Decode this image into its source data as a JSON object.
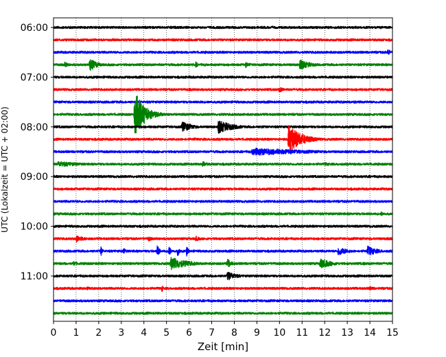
{
  "chart_data": {
    "type": "line",
    "title": "",
    "xlabel": "Zeit  [min]",
    "ylabel": "UTC (Lokalzeit = UTC + 02:00)",
    "xlim": [
      0,
      15
    ],
    "x_ticks": [
      0,
      1,
      2,
      3,
      4,
      5,
      6,
      7,
      8,
      9,
      10,
      11,
      12,
      13,
      14,
      15
    ],
    "y_tick_labels": [
      "06:00",
      "07:00",
      "08:00",
      "09:00",
      "10:00",
      "11:00"
    ],
    "grid": "vertical-dotted",
    "legend": "none",
    "trace_interval_minutes": 15,
    "trace_colors": [
      "#000000",
      "#ff0000",
      "#0000ff",
      "#008000"
    ],
    "traces": [
      {
        "start": "06:00",
        "color": "#000000",
        "events": [
          {
            "t": 5.2,
            "amp": 0.3,
            "dur": 0.3
          }
        ]
      },
      {
        "start": "06:15",
        "color": "#ff0000",
        "events": [
          {
            "t": 13.5,
            "amp": 0.2,
            "dur": 0.8
          }
        ]
      },
      {
        "start": "06:30",
        "color": "#0000ff",
        "events": [
          {
            "t": 14.8,
            "amp": 0.6,
            "dur": 0.3
          }
        ]
      },
      {
        "start": "06:45",
        "color": "#008000",
        "events": [
          {
            "t": 0.5,
            "amp": 0.5,
            "dur": 0.5
          },
          {
            "t": 1.6,
            "amp": 1.1,
            "dur": 0.8
          },
          {
            "t": 6.3,
            "amp": 0.5,
            "dur": 0.3
          },
          {
            "t": 8.5,
            "amp": 0.5,
            "dur": 0.6
          },
          {
            "t": 10.9,
            "amp": 0.9,
            "dur": 1.1
          }
        ]
      },
      {
        "start": "07:00",
        "color": "#000000",
        "events": [
          {
            "t": 6.0,
            "amp": 0.3,
            "dur": 0.4
          }
        ]
      },
      {
        "start": "07:15",
        "color": "#ff0000",
        "events": [
          {
            "t": 6.0,
            "amp": 0.3,
            "dur": 0.4
          },
          {
            "t": 10.0,
            "amp": 0.5,
            "dur": 0.6
          }
        ]
      },
      {
        "start": "07:30",
        "color": "#0000ff",
        "events": [
          {
            "t": 6.5,
            "amp": 0.3,
            "dur": 0.4
          },
          {
            "t": 13.3,
            "amp": 0.3,
            "dur": 0.5
          }
        ]
      },
      {
        "start": "07:45",
        "color": "#008000",
        "events": [
          {
            "t": 3.6,
            "amp": 4.0,
            "dur": 1.0
          }
        ]
      },
      {
        "start": "08:00",
        "color": "#000000",
        "events": [
          {
            "t": 5.7,
            "amp": 1.0,
            "dur": 1.0
          },
          {
            "t": 7.3,
            "amp": 1.2,
            "dur": 1.4
          },
          {
            "t": 9.2,
            "amp": 0.3,
            "dur": 0.6
          }
        ]
      },
      {
        "start": "08:15",
        "color": "#ff0000",
        "events": [
          {
            "t": 10.4,
            "amp": 2.5,
            "dur": 1.3
          },
          {
            "t": 6.2,
            "amp": 0.3,
            "dur": 0.5
          }
        ]
      },
      {
        "start": "08:30",
        "color": "#0000ff",
        "events": [
          {
            "t": 8.8,
            "amp": 0.7,
            "dur": 5.8
          }
        ]
      },
      {
        "start": "08:45",
        "color": "#008000",
        "events": [
          {
            "t": 0.2,
            "amp": 0.5,
            "dur": 2.8
          },
          {
            "t": 6.6,
            "amp": 0.5,
            "dur": 0.6
          },
          {
            "t": 12.0,
            "amp": 0.3,
            "dur": 1.5
          }
        ]
      },
      {
        "start": "09:00",
        "color": "#000000",
        "events": [
          {
            "t": 4.5,
            "amp": 0.2,
            "dur": 0.8
          }
        ]
      },
      {
        "start": "09:15",
        "color": "#ff0000",
        "events": []
      },
      {
        "start": "09:30",
        "color": "#0000ff",
        "events": [
          {
            "t": 14.0,
            "amp": 0.2,
            "dur": 0.8
          }
        ]
      },
      {
        "start": "09:45",
        "color": "#008000",
        "events": [
          {
            "t": 14.5,
            "amp": 0.4,
            "dur": 0.4
          }
        ]
      },
      {
        "start": "10:00",
        "color": "#000000",
        "events": [
          {
            "t": 14.3,
            "amp": 0.2,
            "dur": 0.6
          }
        ]
      },
      {
        "start": "10:15",
        "color": "#ff0000",
        "events": [
          {
            "t": 1.0,
            "amp": 0.6,
            "dur": 0.9
          },
          {
            "t": 4.2,
            "amp": 0.5,
            "dur": 0.4
          },
          {
            "t": 6.3,
            "amp": 0.5,
            "dur": 0.4
          },
          {
            "t": 14.8,
            "amp": 0.4,
            "dur": 0.3
          }
        ]
      },
      {
        "start": "10:30",
        "color": "#0000ff",
        "events": [
          {
            "t": 2.1,
            "amp": 0.8,
            "dur": 0.2
          },
          {
            "t": 3.1,
            "amp": 0.6,
            "dur": 0.3
          },
          {
            "t": 4.6,
            "amp": 1.2,
            "dur": 0.2
          },
          {
            "t": 5.1,
            "amp": 1.1,
            "dur": 0.2
          },
          {
            "t": 5.5,
            "amp": 0.9,
            "dur": 0.2
          },
          {
            "t": 5.9,
            "amp": 0.9,
            "dur": 0.2
          },
          {
            "t": 12.6,
            "amp": 0.8,
            "dur": 1.0
          },
          {
            "t": 13.9,
            "amp": 0.9,
            "dur": 1.0
          }
        ]
      },
      {
        "start": "10:45",
        "color": "#008000",
        "events": [
          {
            "t": 0.9,
            "amp": 0.5,
            "dur": 0.4
          },
          {
            "t": 5.2,
            "amp": 1.2,
            "dur": 1.6
          },
          {
            "t": 7.7,
            "amp": 0.8,
            "dur": 0.5
          },
          {
            "t": 11.8,
            "amp": 0.9,
            "dur": 1.2
          },
          {
            "t": 13.7,
            "amp": 0.3,
            "dur": 0.6
          }
        ]
      },
      {
        "start": "11:00",
        "color": "#000000",
        "events": [
          {
            "t": 7.7,
            "amp": 0.8,
            "dur": 1.0
          }
        ]
      },
      {
        "start": "11:15",
        "color": "#ff0000",
        "events": [
          {
            "t": 1.5,
            "amp": 0.3,
            "dur": 0.6
          },
          {
            "t": 4.8,
            "amp": 0.6,
            "dur": 0.2
          },
          {
            "t": 14.0,
            "amp": 0.4,
            "dur": 0.6
          }
        ]
      },
      {
        "start": "11:30",
        "color": "#0000ff",
        "events": []
      },
      {
        "start": "11:45",
        "color": "#008000",
        "events": []
      }
    ]
  }
}
